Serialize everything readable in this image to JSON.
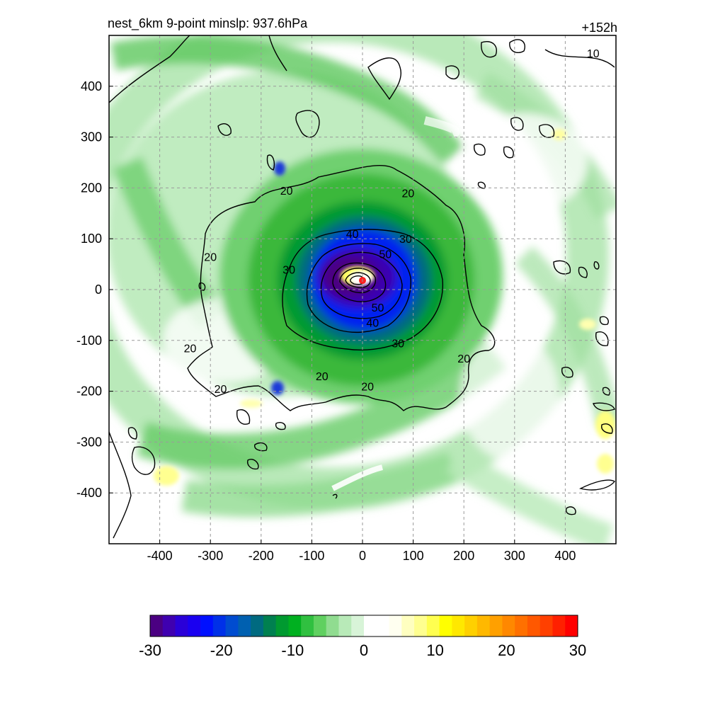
{
  "header": {
    "title": "nest_6km  9-point minslp: 937.6hPa",
    "time_label": "+152h"
  },
  "chart_data": {
    "type": "heatmap",
    "title": "nest_6km  9-point minslp: 937.6hPa",
    "xlabel": "",
    "ylabel": "",
    "xlim": [
      -500,
      500
    ],
    "ylim": [
      -500,
      500
    ],
    "x_ticks": [
      "-400",
      "-300",
      "-200",
      "-100",
      "0",
      "100",
      "200",
      "300",
      "400"
    ],
    "y_ticks": [
      "400",
      "300",
      "200",
      "100",
      "0",
      "-100",
      "-200",
      "-300",
      "-400"
    ],
    "x_tick_values": [
      -400,
      -300,
      -200,
      -100,
      0,
      100,
      200,
      300,
      400
    ],
    "y_tick_values": [
      400,
      300,
      200,
      100,
      0,
      -100,
      -200,
      -300,
      -400
    ],
    "grid": true,
    "contour_labels": [
      {
        "text": "20",
        "x": -150,
        "y": 195
      },
      {
        "text": "20",
        "x": -300,
        "y": 65
      },
      {
        "text": "20",
        "x": -340,
        "y": -115
      },
      {
        "text": "20",
        "x": -280,
        "y": -195
      },
      {
        "text": "20",
        "x": -80,
        "y": -170
      },
      {
        "text": "20",
        "x": 10,
        "y": -190
      },
      {
        "text": "20",
        "x": 200,
        "y": -135
      },
      {
        "text": "20",
        "x": 90,
        "y": 190
      },
      {
        "text": "30",
        "x": -145,
        "y": 40
      },
      {
        "text": "30",
        "x": 70,
        "y": -105
      },
      {
        "text": "30",
        "x": 85,
        "y": 100
      },
      {
        "text": "40",
        "x": -20,
        "y": 110
      },
      {
        "text": "40",
        "x": 20,
        "y": -65
      },
      {
        "text": "50",
        "x": 45,
        "y": 70
      },
      {
        "text": "50",
        "x": 30,
        "y": -35
      },
      {
        "text": "10",
        "x": 455,
        "y": 465
      }
    ],
    "center_marker": {
      "x": 0,
      "y": 18,
      "color": "#ff2020"
    },
    "colorbar": {
      "tick_labels": [
        "-30",
        "-20",
        "-10",
        "0",
        "10",
        "20",
        "30"
      ],
      "tick_values": [
        -30,
        -20,
        -10,
        0,
        10,
        20,
        30
      ],
      "range": [
        -30,
        30
      ],
      "colors": [
        "#4b0082",
        "#3f00b0",
        "#2a00d8",
        "#1a00f0",
        "#0010ff",
        "#0030e8",
        "#004cd0",
        "#0060b0",
        "#006a80",
        "#008050",
        "#009a30",
        "#00b020",
        "#30c040",
        "#60d060",
        "#90dc90",
        "#b8eab8",
        "#d8f4d8",
        "#ffffff",
        "#ffffff",
        "#fffff0",
        "#ffffc0",
        "#ffff90",
        "#ffff50",
        "#ffff00",
        "#ffe800",
        "#ffd000",
        "#ffb800",
        "#ffa000",
        "#ff8800",
        "#ff7000",
        "#ff5800",
        "#ff4000",
        "#ff2000",
        "#ff0000"
      ]
    }
  }
}
